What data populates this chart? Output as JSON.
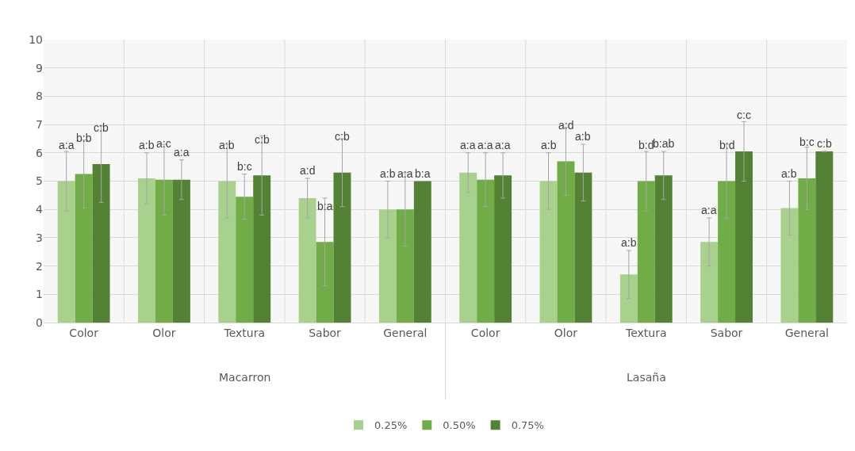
{
  "chart_data": {
    "type": "bar",
    "categories": [
      "Color",
      "Olor",
      "Textura",
      "Sabor",
      "General",
      "Color",
      "Olor",
      "Textura",
      "Sabor",
      "General"
    ],
    "series": [
      {
        "name": "0.25%",
        "color": "#a9d18e",
        "values": [
          5.0,
          5.1,
          5.0,
          4.4,
          4.0,
          5.3,
          5.0,
          1.7,
          2.85,
          4.05
        ],
        "errors": [
          1.05,
          0.9,
          1.3,
          0.7,
          1.0,
          0.7,
          1.0,
          0.85,
          0.85,
          0.95
        ],
        "value_labels": [
          "a:a",
          "a:b",
          "a:b",
          "a:d",
          "a:b",
          "a:a",
          "a:b",
          "a:b",
          "a:a",
          "a:b"
        ]
      },
      {
        "name": "0.50%",
        "color": "#70ad47",
        "values": [
          5.25,
          5.05,
          4.45,
          2.85,
          4.0,
          5.05,
          5.7,
          5.0,
          5.0,
          5.1
        ],
        "errors": [
          1.2,
          1.25,
          0.8,
          1.55,
          1.3,
          0.95,
          1.2,
          1.05,
          1.3,
          1.1
        ],
        "value_labels": [
          "b:b",
          "a:c",
          "b:c",
          "b:a",
          "a:a",
          "a:a",
          "a:d",
          "b:d",
          "b:d",
          "b:c"
        ]
      },
      {
        "name": "0.75%",
        "color": "#548235",
        "values": [
          5.6,
          5.05,
          5.2,
          5.3,
          5.0,
          5.2,
          5.3,
          5.2,
          6.05,
          6.05
        ],
        "errors": [
          1.35,
          0.7,
          1.4,
          1.2,
          null,
          0.8,
          1.0,
          0.85,
          1.05,
          null
        ],
        "value_labels": [
          "c:b",
          "a:a",
          "c:b",
          "c:b",
          "b:a",
          "a:a",
          "a:b",
          "b:ab",
          "c:c",
          "c:b"
        ]
      }
    ],
    "annotations": [
      "Macarron",
      "Lasaña"
    ],
    "ylim": [
      0,
      10
    ],
    "yticks": [
      0,
      1,
      2,
      3,
      4,
      5,
      6,
      7,
      8,
      9,
      10
    ],
    "grid": true,
    "legend": "bottom"
  }
}
